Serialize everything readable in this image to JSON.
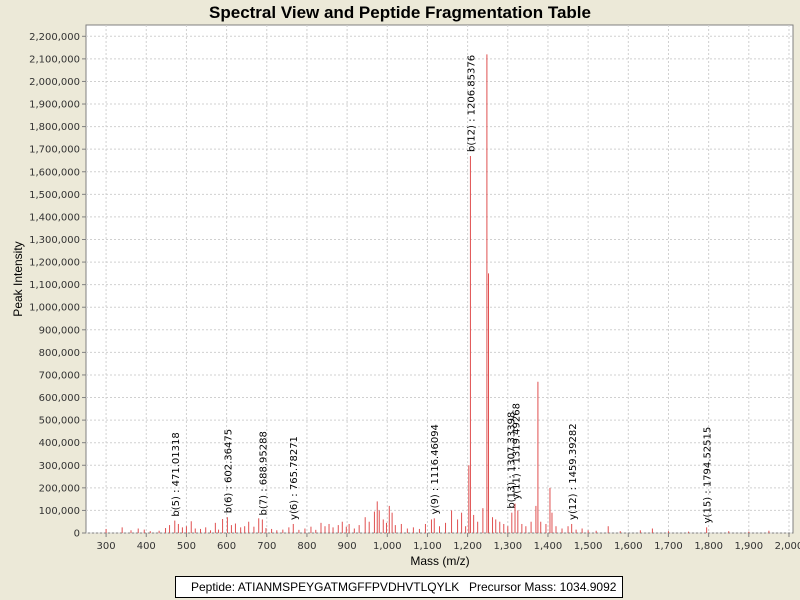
{
  "chart_data": {
    "type": "bar",
    "title": "Spectral View and Peptide Fragmentation Table",
    "xlabel": "Mass (m/z)",
    "ylabel": "Peak Intensity",
    "xlim": [
      250,
      2010
    ],
    "ylim": [
      0,
      2250000
    ],
    "grid": true,
    "peak_color": "#e05050",
    "xticks": [
      300,
      400,
      500,
      600,
      700,
      800,
      900,
      1000,
      1100,
      1200,
      1300,
      1400,
      1500,
      1600,
      1700,
      1800,
      1900,
      2000
    ],
    "xtick_labels": [
      "300",
      "400",
      "500",
      "600",
      "700",
      "800",
      "900",
      "1,000",
      "1,100",
      "1,200",
      "1,300",
      "1,400",
      "1,500",
      "1,600",
      "1,700",
      "1,800",
      "1,900",
      "2,000"
    ],
    "yticks": [
      0,
      100000,
      200000,
      300000,
      400000,
      500000,
      600000,
      700000,
      800000,
      900000,
      1000000,
      1100000,
      1200000,
      1300000,
      1400000,
      1500000,
      1600000,
      1700000,
      1800000,
      1900000,
      2000000,
      2100000,
      2200000
    ],
    "ytick_labels": [
      "0",
      "100,000",
      "200,000",
      "300,000",
      "400,000",
      "500,000",
      "600,000",
      "700,000",
      "800,000",
      "900,000",
      "1,000,000",
      "1,100,000",
      "1,200,000",
      "1,300,000",
      "1,400,000",
      "1,500,000",
      "1,600,000",
      "1,700,000",
      "1,800,000",
      "1,900,000",
      "2,000,000",
      "2,100,000",
      "2,200,000"
    ],
    "peaks": [
      {
        "mz": 300,
        "intensity": 18000
      },
      {
        "mz": 340,
        "intensity": 25000
      },
      {
        "mz": 362,
        "intensity": 12000
      },
      {
        "mz": 380,
        "intensity": 20000
      },
      {
        "mz": 395,
        "intensity": 15000
      },
      {
        "mz": 410,
        "intensity": 8000
      },
      {
        "mz": 432,
        "intensity": 10000
      },
      {
        "mz": 448,
        "intensity": 22000
      },
      {
        "mz": 458,
        "intensity": 35000
      },
      {
        "mz": 471,
        "intensity": 55000
      },
      {
        "mz": 480,
        "intensity": 40000
      },
      {
        "mz": 490,
        "intensity": 25000
      },
      {
        "mz": 500,
        "intensity": 30000
      },
      {
        "mz": 512,
        "intensity": 52000
      },
      {
        "mz": 522,
        "intensity": 20000
      },
      {
        "mz": 535,
        "intensity": 18000
      },
      {
        "mz": 548,
        "intensity": 25000
      },
      {
        "mz": 560,
        "intensity": 12000
      },
      {
        "mz": 572,
        "intensity": 45000
      },
      {
        "mz": 580,
        "intensity": 15000
      },
      {
        "mz": 590,
        "intensity": 62000
      },
      {
        "mz": 602,
        "intensity": 70000
      },
      {
        "mz": 612,
        "intensity": 35000
      },
      {
        "mz": 622,
        "intensity": 42000
      },
      {
        "mz": 635,
        "intensity": 25000
      },
      {
        "mz": 645,
        "intensity": 30000
      },
      {
        "mz": 655,
        "intensity": 50000
      },
      {
        "mz": 668,
        "intensity": 28000
      },
      {
        "mz": 680,
        "intensity": 65000
      },
      {
        "mz": 689,
        "intensity": 60000
      },
      {
        "mz": 698,
        "intensity": 22000
      },
      {
        "mz": 712,
        "intensity": 18000
      },
      {
        "mz": 725,
        "intensity": 12000
      },
      {
        "mz": 740,
        "intensity": 15000
      },
      {
        "mz": 755,
        "intensity": 25000
      },
      {
        "mz": 766,
        "intensity": 40000
      },
      {
        "mz": 780,
        "intensity": 14000
      },
      {
        "mz": 795,
        "intensity": 20000
      },
      {
        "mz": 810,
        "intensity": 28000
      },
      {
        "mz": 822,
        "intensity": 14000
      },
      {
        "mz": 835,
        "intensity": 45000
      },
      {
        "mz": 845,
        "intensity": 30000
      },
      {
        "mz": 855,
        "intensity": 40000
      },
      {
        "mz": 865,
        "intensity": 25000
      },
      {
        "mz": 878,
        "intensity": 35000
      },
      {
        "mz": 888,
        "intensity": 50000
      },
      {
        "mz": 898,
        "intensity": 28000
      },
      {
        "mz": 905,
        "intensity": 40000
      },
      {
        "mz": 918,
        "intensity": 20000
      },
      {
        "mz": 930,
        "intensity": 35000
      },
      {
        "mz": 945,
        "intensity": 70000
      },
      {
        "mz": 955,
        "intensity": 50000
      },
      {
        "mz": 968,
        "intensity": 95000
      },
      {
        "mz": 975,
        "intensity": 140000
      },
      {
        "mz": 980,
        "intensity": 100000
      },
      {
        "mz": 990,
        "intensity": 60000
      },
      {
        "mz": 998,
        "intensity": 45000
      },
      {
        "mz": 1005,
        "intensity": 120000
      },
      {
        "mz": 1012,
        "intensity": 90000
      },
      {
        "mz": 1020,
        "intensity": 35000
      },
      {
        "mz": 1035,
        "intensity": 40000
      },
      {
        "mz": 1050,
        "intensity": 20000
      },
      {
        "mz": 1065,
        "intensity": 25000
      },
      {
        "mz": 1080,
        "intensity": 18000
      },
      {
        "mz": 1095,
        "intensity": 40000
      },
      {
        "mz": 1110,
        "intensity": 60000
      },
      {
        "mz": 1117,
        "intensity": 65000
      },
      {
        "mz": 1130,
        "intensity": 30000
      },
      {
        "mz": 1145,
        "intensity": 45000
      },
      {
        "mz": 1160,
        "intensity": 100000
      },
      {
        "mz": 1175,
        "intensity": 60000
      },
      {
        "mz": 1185,
        "intensity": 90000
      },
      {
        "mz": 1195,
        "intensity": 30000
      },
      {
        "mz": 1203,
        "intensity": 300000
      },
      {
        "mz": 1207,
        "intensity": 1670000
      },
      {
        "mz": 1215,
        "intensity": 80000
      },
      {
        "mz": 1225,
        "intensity": 50000
      },
      {
        "mz": 1238,
        "intensity": 110000
      },
      {
        "mz": 1248,
        "intensity": 2120000
      },
      {
        "mz": 1252,
        "intensity": 1150000
      },
      {
        "mz": 1262,
        "intensity": 70000
      },
      {
        "mz": 1270,
        "intensity": 60000
      },
      {
        "mz": 1280,
        "intensity": 50000
      },
      {
        "mz": 1290,
        "intensity": 40000
      },
      {
        "mz": 1300,
        "intensity": 30000
      },
      {
        "mz": 1310,
        "intensity": 90000
      },
      {
        "mz": 1318,
        "intensity": 130000
      },
      {
        "mz": 1325,
        "intensity": 100000
      },
      {
        "mz": 1335,
        "intensity": 40000
      },
      {
        "mz": 1345,
        "intensity": 30000
      },
      {
        "mz": 1358,
        "intensity": 50000
      },
      {
        "mz": 1370,
        "intensity": 120000
      },
      {
        "mz": 1375,
        "intensity": 670000
      },
      {
        "mz": 1382,
        "intensity": 50000
      },
      {
        "mz": 1395,
        "intensity": 40000
      },
      {
        "mz": 1405,
        "intensity": 200000
      },
      {
        "mz": 1410,
        "intensity": 90000
      },
      {
        "mz": 1420,
        "intensity": 30000
      },
      {
        "mz": 1435,
        "intensity": 20000
      },
      {
        "mz": 1450,
        "intensity": 30000
      },
      {
        "mz": 1459,
        "intensity": 40000
      },
      {
        "mz": 1470,
        "intensity": 15000
      },
      {
        "mz": 1485,
        "intensity": 20000
      },
      {
        "mz": 1500,
        "intensity": 12000
      },
      {
        "mz": 1520,
        "intensity": 10000
      },
      {
        "mz": 1550,
        "intensity": 30000
      },
      {
        "mz": 1580,
        "intensity": 8000
      },
      {
        "mz": 1630,
        "intensity": 12000
      },
      {
        "mz": 1660,
        "intensity": 20000
      },
      {
        "mz": 1700,
        "intensity": 8000
      },
      {
        "mz": 1750,
        "intensity": 6000
      },
      {
        "mz": 1795,
        "intensity": 25000
      },
      {
        "mz": 1850,
        "intensity": 8000
      },
      {
        "mz": 1900,
        "intensity": 6000
      },
      {
        "mz": 1950,
        "intensity": 10000
      }
    ],
    "annotations": [
      {
        "label": "b(5) : 471.01318",
        "mz": 471.01318,
        "intensity": 55000
      },
      {
        "label": "b(6) : 602.36475",
        "mz": 602.36475,
        "intensity": 70000
      },
      {
        "label": "b(7) : 688.95288",
        "mz": 688.95288,
        "intensity": 60000
      },
      {
        "label": "y(6) : 765.78271",
        "mz": 765.78271,
        "intensity": 40000
      },
      {
        "label": "y(9) : 1116.46094",
        "mz": 1116.46094,
        "intensity": 65000
      },
      {
        "label": "b(12) : 1206.85376",
        "mz": 1206.85376,
        "intensity": 1670000
      },
      {
        "label": "b(13) : 1307.33398",
        "mz": 1307.33398,
        "intensity": 90000
      },
      {
        "label": "y(11) : 1319.49268",
        "mz": 1319.49268,
        "intensity": 130000
      },
      {
        "label": "y(12) : 1459.39282",
        "mz": 1459.39282,
        "intensity": 40000
      },
      {
        "label": "y(15) : 1794.52515",
        "mz": 1794.52515,
        "intensity": 25000
      }
    ]
  },
  "info": {
    "peptide_text": "Peptide: ATIANMSPEYGATMGFFPVDHVTLQYLK",
    "precursor_text": "Precursor Mass: 1034.9092"
  }
}
